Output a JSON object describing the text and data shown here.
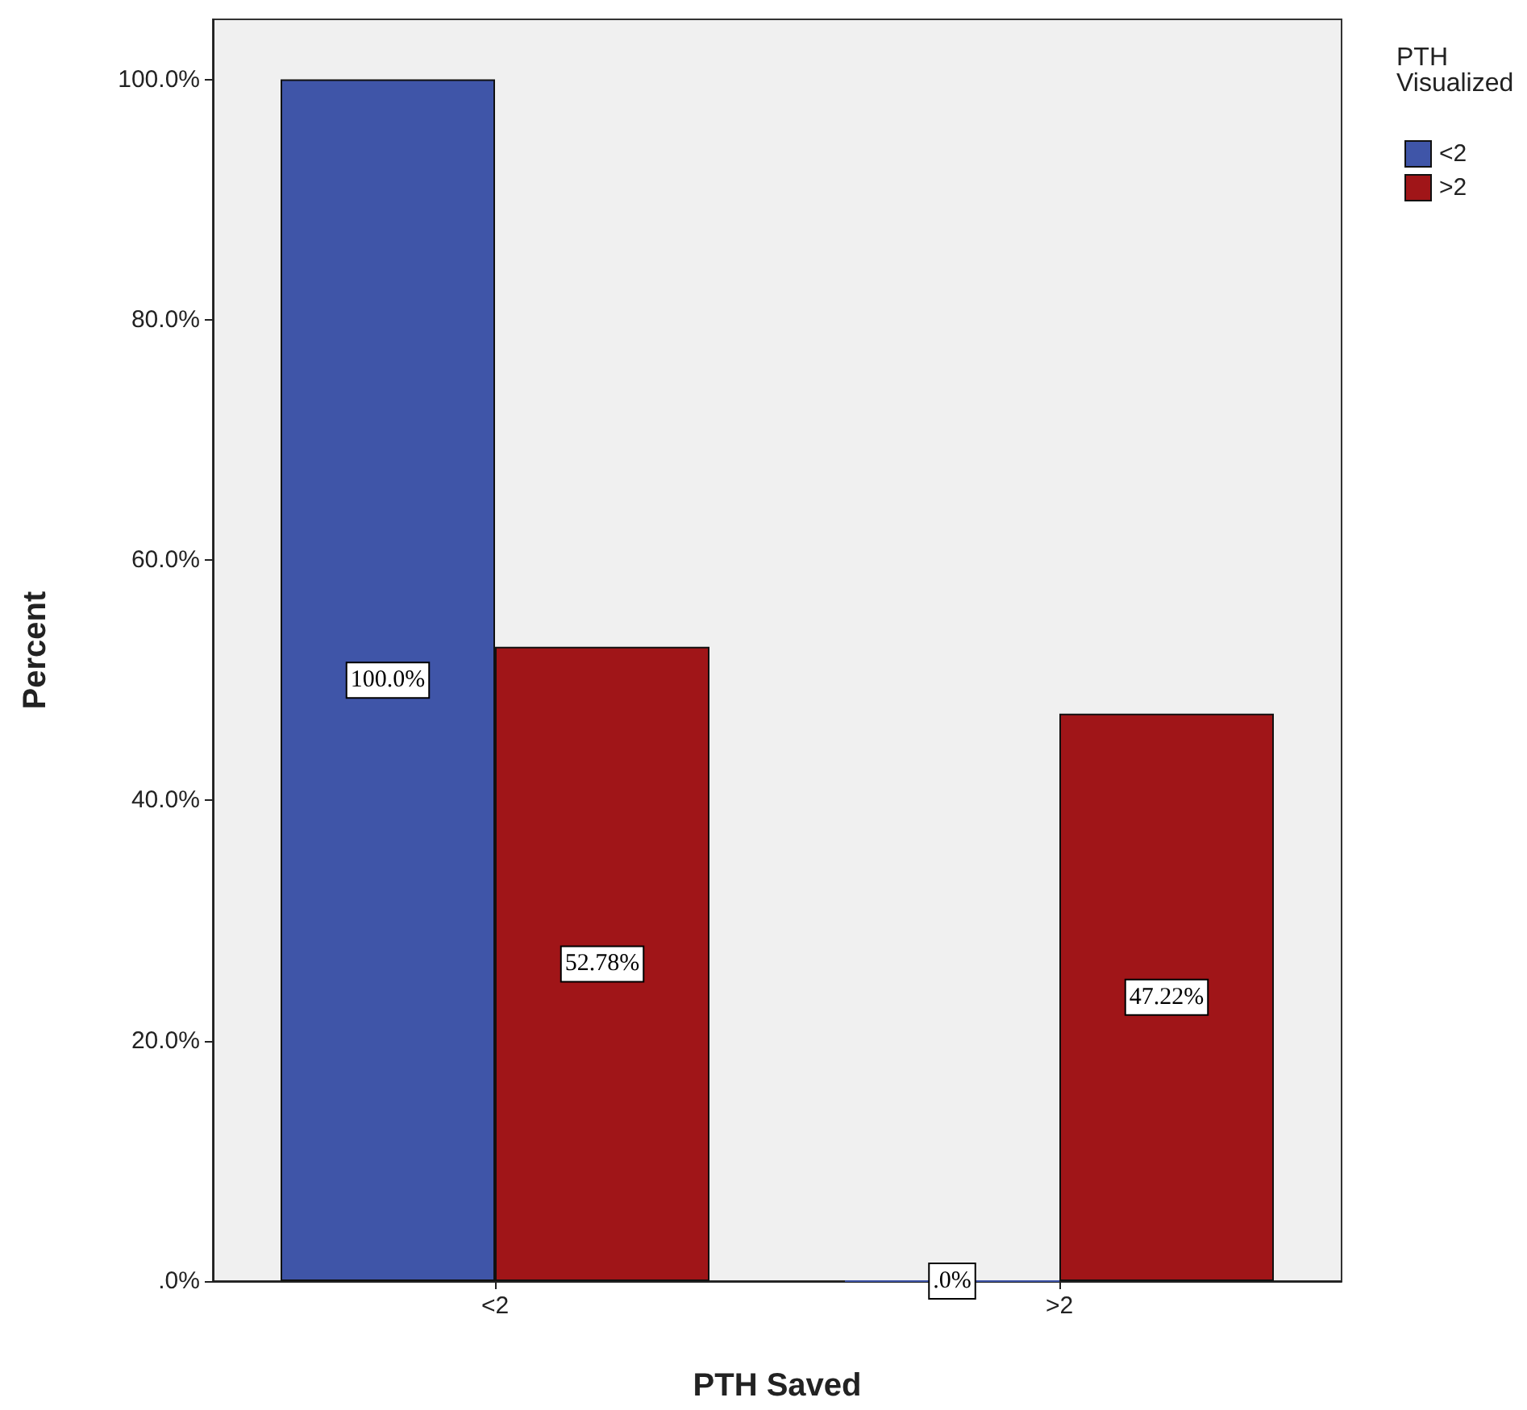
{
  "chart_data": {
    "type": "bar",
    "xlabel": "PTH Saved",
    "ylabel": "Percent",
    "legend_title": "PTH Visualized",
    "categories": [
      "<2",
      ">2"
    ],
    "series": [
      {
        "name": "<2",
        "color": "#3f55a8",
        "values": [
          100,
          0
        ],
        "value_labels": [
          "100.0%",
          ".0%"
        ]
      },
      {
        "name": ">2",
        "color": "#a01518",
        "values": [
          52.78,
          47.22
        ],
        "value_labels": [
          "52.78%",
          "47.22%"
        ]
      }
    ],
    "ylim": [
      0,
      105
    ],
    "yticks": [
      {
        "value": 0,
        "label": ".0%"
      },
      {
        "value": 20,
        "label": "20.0%"
      },
      {
        "value": 40,
        "label": "40.0%"
      },
      {
        "value": 60,
        "label": "60.0%"
      },
      {
        "value": 80,
        "label": "80.0%"
      },
      {
        "value": 100,
        "label": "100.0%"
      }
    ],
    "grid": false,
    "legend": "top right"
  }
}
